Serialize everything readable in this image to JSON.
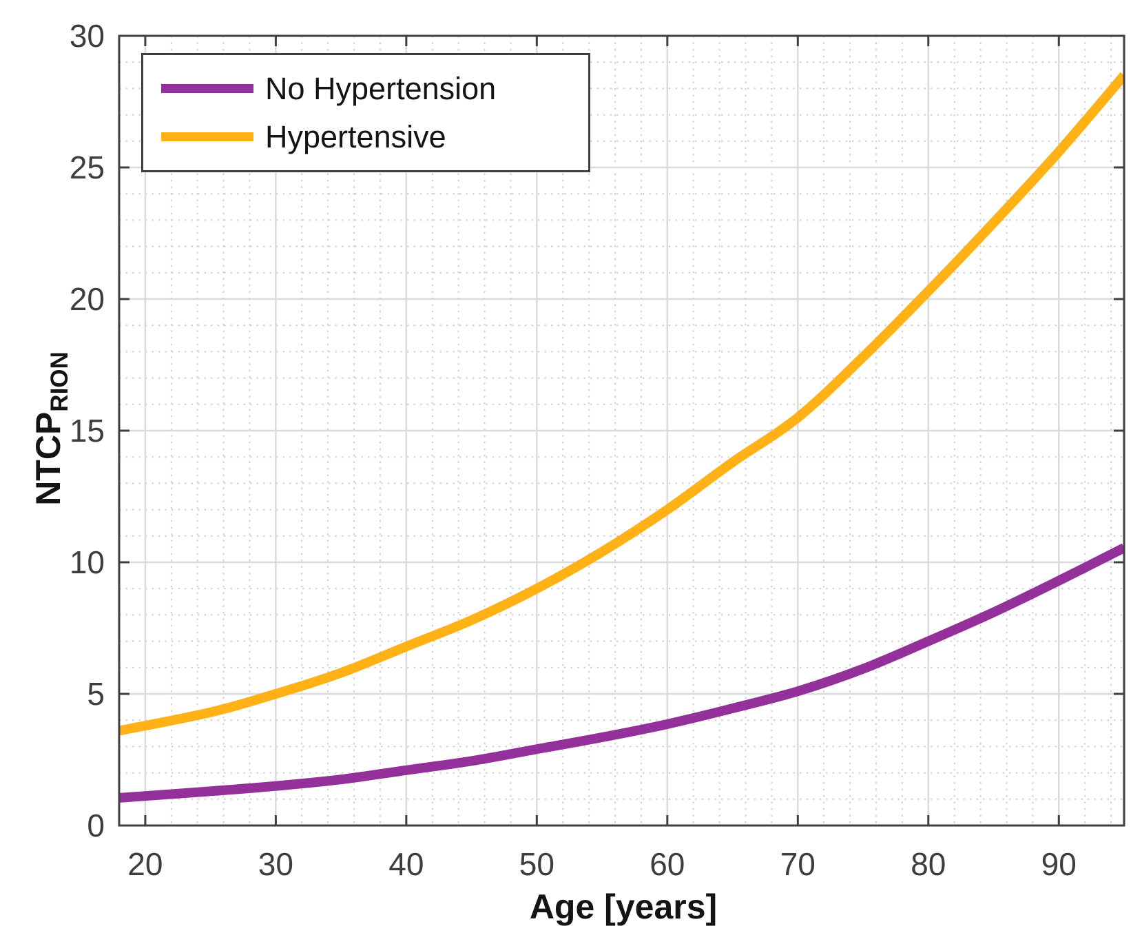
{
  "chart_data": {
    "type": "line",
    "title": "",
    "xlabel": "Age [years]",
    "ylabel": "NTCP",
    "ylabel_subscript": "RION",
    "xlim": [
      18,
      95
    ],
    "ylim": [
      0,
      30
    ],
    "xticks": [
      20,
      30,
      40,
      50,
      60,
      70,
      80,
      90
    ],
    "yticks": [
      0,
      5,
      10,
      15,
      20,
      25,
      30
    ],
    "minor_x_step": 2,
    "minor_y_step": 1,
    "grid": {
      "major": "solid",
      "minor": "dotted"
    },
    "legend_position": "top-left",
    "x": [
      18,
      25,
      30,
      35,
      40,
      45,
      50,
      55,
      60,
      65,
      70,
      75,
      80,
      85,
      90,
      95
    ],
    "series": [
      {
        "name": "No Hypertension",
        "color": "#943099",
        "values": [
          1.05,
          1.3,
          1.5,
          1.75,
          2.1,
          2.45,
          2.9,
          3.35,
          3.85,
          4.45,
          5.1,
          5.95,
          7.0,
          8.1,
          9.3,
          10.55
        ]
      },
      {
        "name": "Hypertensive",
        "color": "#FFB115",
        "values": [
          3.6,
          4.3,
          5.0,
          5.8,
          6.8,
          7.8,
          9.0,
          10.4,
          12.0,
          13.8,
          15.5,
          17.8,
          20.3,
          22.9,
          25.6,
          28.5
        ]
      }
    ]
  }
}
